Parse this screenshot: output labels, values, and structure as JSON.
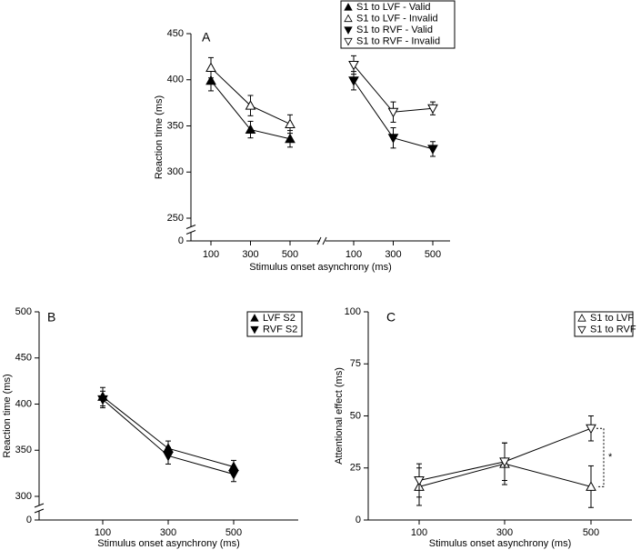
{
  "chart_data": [
    {
      "type": "line",
      "label": "A",
      "categories": [
        100,
        300,
        500,
        100,
        300,
        500
      ],
      "xlabel": "Stimulus onset asynchrony (ms)",
      "ylabel": "Reaction time (ms)",
      "ylim": [
        250,
        450
      ],
      "yticks": [
        0,
        250,
        300,
        350,
        400,
        450
      ],
      "axis_break": true,
      "legend": "top",
      "series": [
        {
          "name": "S1 to LVF - Valid",
          "color": "#000000",
          "marker": "triangle-up",
          "filled": true,
          "values": [
            399,
            346,
            336,
            null,
            null,
            null
          ],
          "errors": [
            11,
            9,
            9,
            null,
            null,
            null
          ]
        },
        {
          "name": "S1 to LVF - Invalid",
          "color": "#000000",
          "marker": "triangle-up",
          "filled": false,
          "values": [
            413,
            372,
            352,
            null,
            null,
            null
          ],
          "errors": [
            11,
            11,
            10,
            null,
            null,
            null
          ]
        },
        {
          "name": "S1 to RVF - Valid",
          "color": "#000000",
          "marker": "triangle-down",
          "filled": true,
          "values": [
            null,
            null,
            null,
            399,
            337,
            325
          ],
          "errors": [
            null,
            null,
            null,
            10,
            11,
            8
          ]
        },
        {
          "name": "S1 to RVF - Invalid",
          "color": "#000000",
          "marker": "triangle-down",
          "filled": false,
          "values": [
            null,
            null,
            null,
            416,
            365,
            369
          ],
          "errors": [
            null,
            null,
            null,
            10,
            11,
            7
          ]
        }
      ]
    },
    {
      "type": "line",
      "label": "B",
      "categories": [
        100,
        300,
        500
      ],
      "xlabel": "Stimulus onset asynchrony (ms)",
      "ylabel": "Reaction time (ms)",
      "ylim": [
        300,
        500
      ],
      "yticks": [
        0,
        300,
        350,
        400,
        450,
        500
      ],
      "axis_break": true,
      "legend": "upper right",
      "series": [
        {
          "name": "LVF S2",
          "color": "#000000",
          "marker": "triangle-up",
          "filled": true,
          "values": [
            408,
            352,
            332
          ],
          "errors": [
            10,
            8,
            7
          ]
        },
        {
          "name": "RVF S2",
          "color": "#000000",
          "marker": "triangle-down",
          "filled": true,
          "values": [
            405,
            344,
            324
          ],
          "errors": [
            9,
            9,
            8
          ]
        }
      ]
    },
    {
      "type": "line",
      "label": "C",
      "categories": [
        100,
        300,
        500
      ],
      "xlabel": "Stimulus onset asynchrony (ms)",
      "ylabel": "Attentional effect (ms)",
      "ylim": [
        0,
        100
      ],
      "yticks": [
        0,
        25,
        50,
        75,
        100
      ],
      "axis_break": false,
      "legend": "upper right",
      "annotation": "*",
      "series": [
        {
          "name": "S1 to LVF",
          "color": "#000000",
          "marker": "triangle-up",
          "filled": false,
          "values": [
            16,
            27,
            16
          ],
          "errors": [
            9,
            10,
            10
          ]
        },
        {
          "name": "S1 to RVF",
          "color": "#000000",
          "marker": "triangle-down",
          "filled": false,
          "values": [
            19,
            28,
            44
          ],
          "errors": [
            8,
            9,
            6
          ]
        }
      ]
    }
  ]
}
